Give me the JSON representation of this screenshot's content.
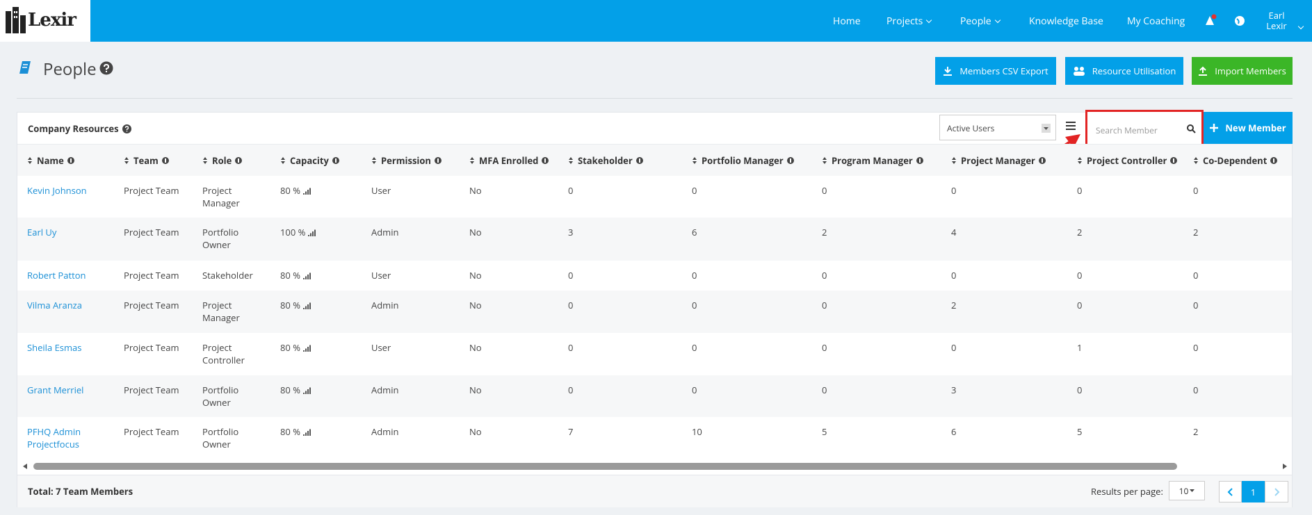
{
  "nav": {
    "logo": "Lexir",
    "items": [
      "Home",
      "Projects",
      "People",
      "Knowledge Base",
      "My Coaching"
    ],
    "user": "Earl Lexir"
  },
  "page": {
    "title": "People",
    "buttons": [
      "Members CSV Export",
      "Resource Utilisation",
      "Import Members"
    ]
  },
  "panel": {
    "title": "Company Resources",
    "filter": "Active Users",
    "search_placeholder": "Search Member",
    "new_button": "New Member"
  },
  "table": {
    "columns": [
      "Name",
      "Team",
      "Role",
      "Capacity",
      "Permission",
      "MFA Enrolled",
      "Stakeholder",
      "Portfolio Manager",
      "Program Manager",
      "Project Manager",
      "Project Controller",
      "Co-Dependent"
    ],
    "rows": [
      [
        "Kevin Johnson",
        "Project Team",
        "Project Manager",
        "80 %",
        "User",
        "No",
        0,
        0,
        0,
        0,
        0,
        0
      ],
      [
        "Earl Uy",
        "Project Team",
        "Portfolio Owner",
        "100 %",
        "Admin",
        "No",
        3,
        6,
        2,
        4,
        2,
        2
      ],
      [
        "Robert Patton",
        "Project Team",
        "Stakeholder",
        "80 %",
        "User",
        "No",
        0,
        0,
        0,
        0,
        0,
        0
      ],
      [
        "Vilma Aranza",
        "Project Team",
        "Project Manager",
        "80 %",
        "Admin",
        "No",
        0,
        0,
        0,
        2,
        0,
        0
      ],
      [
        "Sheila Esmas",
        "Project Team",
        "Project Controller",
        "80 %",
        "User",
        "No",
        0,
        0,
        0,
        0,
        1,
        0
      ],
      [
        "Grant Merriel",
        "Project Team",
        "Portfolio Owner",
        "80 %",
        "Admin",
        "No",
        0,
        0,
        0,
        3,
        0,
        0
      ],
      [
        "PFHQ Admin Projectfocus",
        "Project Team",
        "Portfolio Owner",
        "80 %",
        "Admin",
        "No",
        7,
        10,
        5,
        6,
        5,
        2
      ]
    ]
  },
  "footer": {
    "total": "Total: 7 Team Members",
    "results_label": "Results per page:",
    "page_size": "10",
    "page": "1"
  }
}
